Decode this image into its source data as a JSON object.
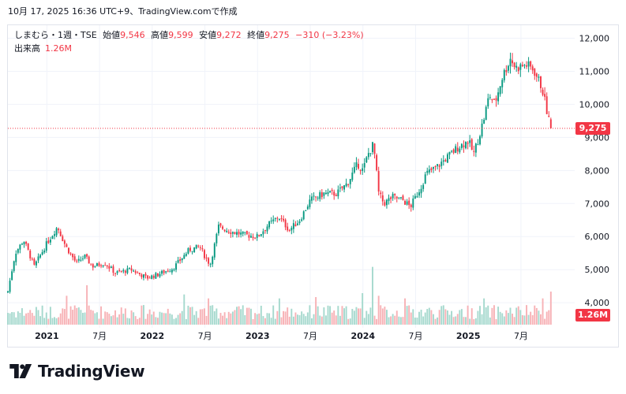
{
  "caption": "10月 17, 2025 16:36 UTC+9、TradingView.comで作成",
  "legend": {
    "symbol": "しまむら・1週・TSE",
    "open_label": "始値",
    "open_value": "9,546",
    "high_label": "高値",
    "high_value": "9,599",
    "low_label": "安値",
    "low_value": "9,272",
    "close_label": "終値",
    "close_value": "9,275",
    "change": "−310 (−3.23%)",
    "volume_label": "出来高",
    "volume_value": "1.26M"
  },
  "badges": {
    "price": "9,275",
    "volume": "1.26M"
  },
  "brand": {
    "name": "TradingView"
  },
  "colors": {
    "up": "#089981",
    "down": "#f23645",
    "up_vol": "#a6d9ce",
    "down_vol": "#f7b2b6"
  },
  "chart_data": {
    "type": "candlestick",
    "interval": "1週",
    "y_axis": {
      "position": "right",
      "ticks": [
        "12,000",
        "11,000",
        "10,000",
        "9,000",
        "8,000",
        "7,000",
        "6,000",
        "5,000",
        "4,000"
      ],
      "tick_values": [
        12000,
        11000,
        10000,
        9000,
        8000,
        7000,
        6000,
        5000,
        4000
      ],
      "ylim": [
        3670,
        12250
      ]
    },
    "x_axis": {
      "labels": [
        "2021",
        "7月",
        "2022",
        "7月",
        "2023",
        "7月",
        "2024",
        "7月",
        "2025",
        "7月"
      ],
      "label_dates": [
        2021.0,
        2021.5,
        2022.0,
        2022.5,
        2023.0,
        2023.5,
        2024.0,
        2024.5,
        2025.0,
        2025.5
      ],
      "bold": [
        true,
        false,
        true,
        false,
        true,
        false,
        true,
        false,
        true,
        false
      ],
      "xlim": [
        2020.63,
        2025.98
      ]
    },
    "last_price_line": 9275,
    "close_anchors": {
      "dates": [
        2020.63,
        2020.7,
        2020.78,
        2020.88,
        2021.0,
        2021.1,
        2021.18,
        2021.28,
        2021.36,
        2021.43,
        2021.55,
        2021.65,
        2021.8,
        2021.95,
        2022.05,
        2022.2,
        2022.35,
        2022.45,
        2022.5,
        2022.55,
        2022.63,
        2022.75,
        2022.88,
        2023.0,
        2023.1,
        2023.2,
        2023.3,
        2023.4,
        2023.5,
        2023.63,
        2023.75,
        2023.85,
        2023.95,
        2024.0,
        2024.05,
        2024.1,
        2024.15,
        2024.2,
        2024.28,
        2024.38,
        2024.45,
        2024.55,
        2024.6,
        2024.7,
        2024.8,
        2024.9,
        2025.0,
        2025.05,
        2025.1,
        2025.15,
        2025.2,
        2025.25,
        2025.32,
        2025.4,
        2025.45,
        2025.55,
        2025.62,
        2025.7,
        2025.76,
        2025.79
      ],
      "closes": [
        4350,
        5500,
        5900,
        5100,
        5800,
        6300,
        5700,
        5200,
        5400,
        5100,
        5200,
        4900,
        5000,
        4750,
        4850,
        5050,
        5600,
        5700,
        5400,
        5150,
        6300,
        6150,
        6050,
        6000,
        6350,
        6600,
        6200,
        6500,
        7100,
        7300,
        7300,
        7600,
        8200,
        8000,
        8500,
        8800,
        7300,
        7000,
        7200,
        7100,
        6900,
        7500,
        7900,
        8100,
        8400,
        8700,
        8900,
        8500,
        9000,
        9600,
        10300,
        10000,
        10800,
        11400,
        11100,
        11200,
        11050,
        10500,
        9585,
        9275
      ]
    },
    "volume": {
      "typical_millions": 0.6,
      "spikes": [
        {
          "date": 2021.18,
          "millions": 1.1
        },
        {
          "date": 2021.38,
          "millions": 1.5
        },
        {
          "date": 2022.3,
          "millions": 1.15
        },
        {
          "date": 2022.53,
          "millions": 1.0
        },
        {
          "date": 2023.2,
          "millions": 1.0
        },
        {
          "date": 2023.55,
          "millions": 1.05
        },
        {
          "date": 2024.0,
          "millions": 1.2
        },
        {
          "date": 2024.1,
          "millions": 2.2
        },
        {
          "date": 2024.15,
          "millions": 1.1
        },
        {
          "date": 2024.4,
          "millions": 1.0
        },
        {
          "date": 2025.15,
          "millions": 1.0
        },
        {
          "date": 2025.7,
          "millions": 1.0
        },
        {
          "date": 2025.79,
          "millions": 1.26
        }
      ]
    }
  }
}
